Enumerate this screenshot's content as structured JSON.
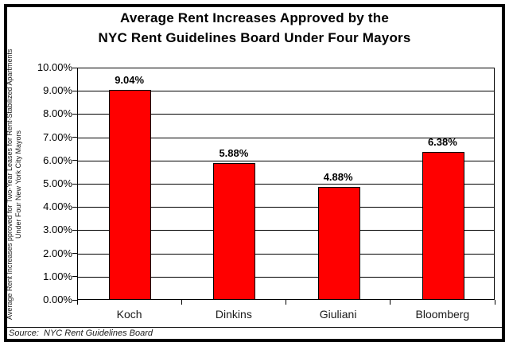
{
  "window": {
    "background": "#ffffff",
    "border_color": "#000000"
  },
  "chart_data": {
    "type": "bar",
    "title_lines": [
      "Average Rent Increases Approved by the",
      "NYC Rent Guidelines Board Under Four Mayors"
    ],
    "categories": [
      "Koch",
      "Dinkins",
      "Giuliani",
      "Bloomberg"
    ],
    "values": [
      9.04,
      5.88,
      4.88,
      6.38
    ],
    "value_labels": [
      "9.04%",
      "5.88%",
      "4.88%",
      "6.38%"
    ],
    "y_ticks": [
      "10.00%",
      "9.00%",
      "8.00%",
      "7.00%",
      "6.00%",
      "5.00%",
      "4.00%",
      "3.00%",
      "2.00%",
      "1.00%",
      "0.00%"
    ],
    "ylim": [
      0,
      10
    ],
    "grid": true,
    "legend": "none",
    "bar_color": "#ff0000",
    "bar_border_color": "#000000",
    "ylabel_lines": [
      "Average Rent Increases pproved for Two-Year Leases for Rent-Stabilized Apartments",
      "Under Four New York City Mayors"
    ],
    "source_text": "Source:  NYC Rent Guidelines Board"
  }
}
